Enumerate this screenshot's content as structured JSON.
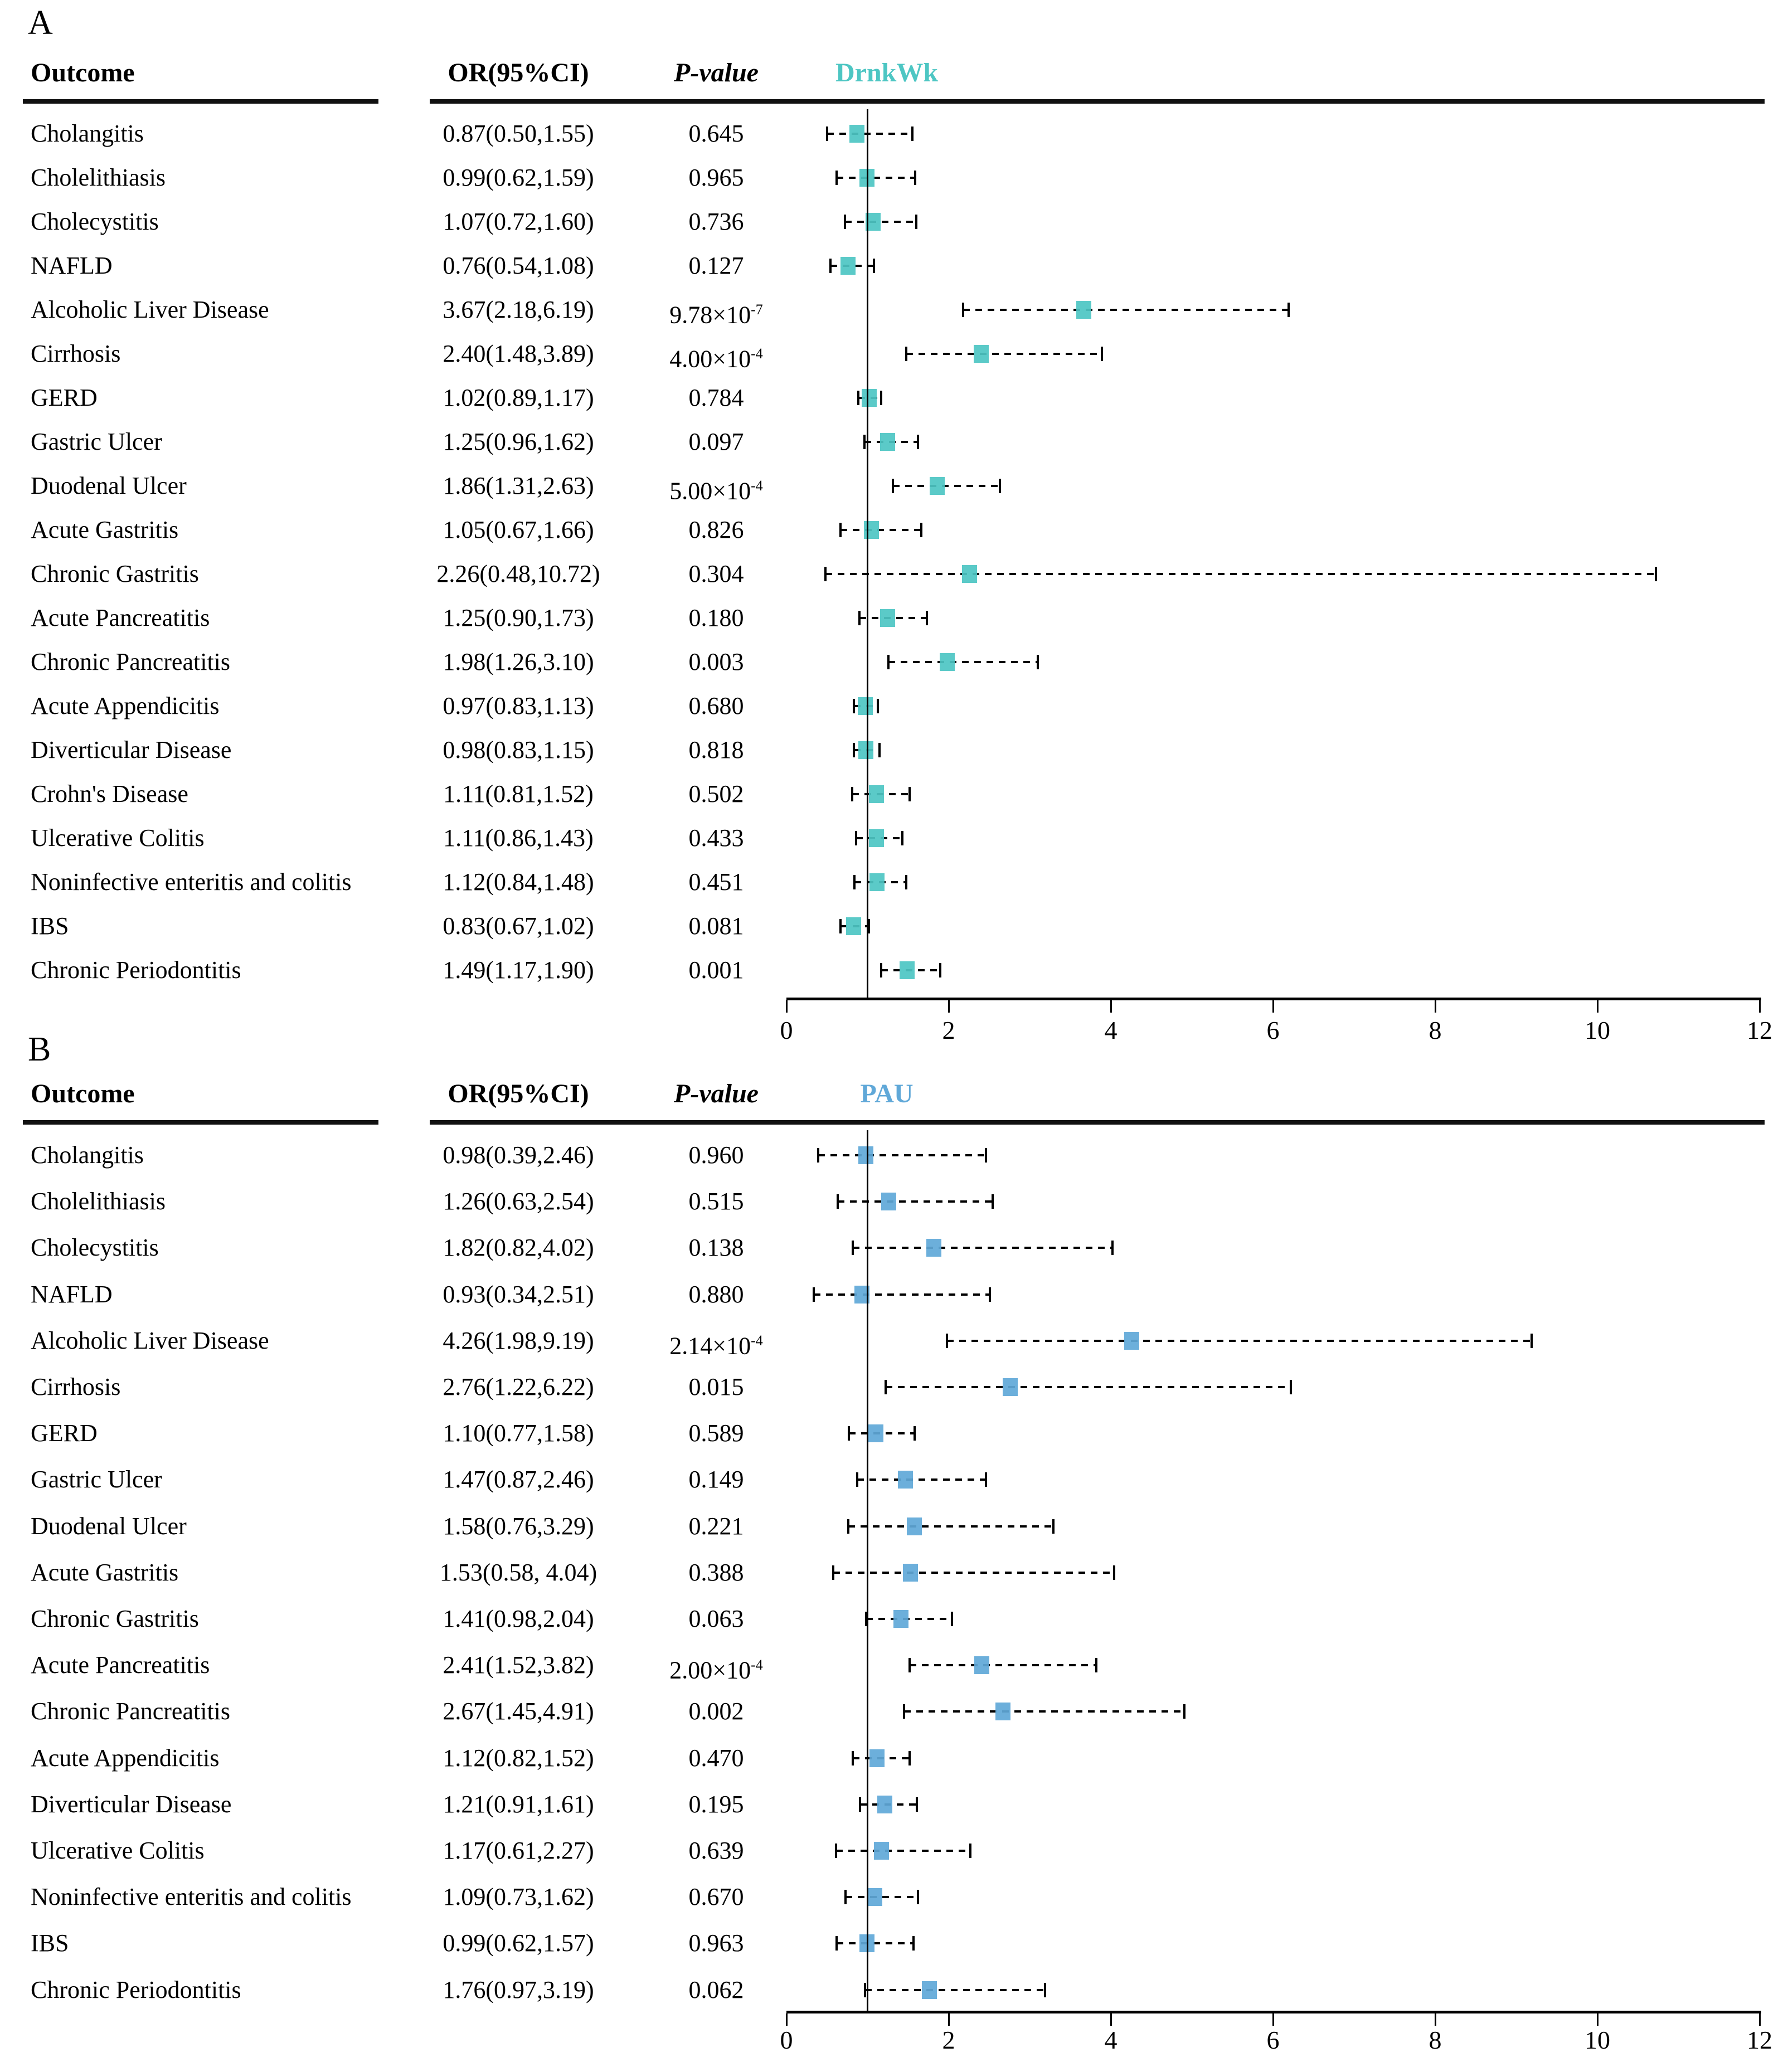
{
  "figure": {
    "columns": {
      "outcome": "Outcome",
      "or_ci": "OR(95%CI)",
      "p_value": "P-value"
    },
    "axis_ticks": [
      0,
      2,
      4,
      6,
      8,
      10,
      12
    ]
  },
  "panels": [
    {
      "panel_label": "A",
      "exposure": "DrnkWk",
      "accent_color": "#4dc6c3"
    },
    {
      "panel_label": "B",
      "exposure": "PAU",
      "accent_color": "#60a8d8"
    }
  ],
  "chart_data": [
    {
      "type": "scatter",
      "subtype": "forest-plot",
      "panel": "A",
      "title": "DrnkWk",
      "xlabel": "",
      "xlim": [
        0,
        12
      ],
      "x_ticks": [
        0,
        2,
        4,
        6,
        8,
        10,
        12
      ],
      "reference_line_x": 1,
      "marker_color": "#4dc6c3",
      "legend_position": "none",
      "grid": false,
      "columns": [
        "Outcome",
        "OR(95%CI)",
        "P-value"
      ],
      "rows": [
        {
          "outcome": "Cholangitis",
          "or": 0.87,
          "lo": 0.5,
          "hi": 1.55,
          "or_ci": "0.87(0.50,1.55)",
          "p": "0.645"
        },
        {
          "outcome": "Cholelithiasis",
          "or": 0.99,
          "lo": 0.62,
          "hi": 1.59,
          "or_ci": "0.99(0.62,1.59)",
          "p": "0.965"
        },
        {
          "outcome": "Cholecystitis",
          "or": 1.07,
          "lo": 0.72,
          "hi": 1.6,
          "or_ci": "1.07(0.72,1.60)",
          "p": "0.736"
        },
        {
          "outcome": "NAFLD",
          "or": 0.76,
          "lo": 0.54,
          "hi": 1.08,
          "or_ci": "0.76(0.54,1.08)",
          "p": "0.127"
        },
        {
          "outcome": "Alcoholic Liver Disease",
          "or": 3.67,
          "lo": 2.18,
          "hi": 6.19,
          "or_ci": "3.67(2.18,6.19)",
          "p": "9.78×10^-7"
        },
        {
          "outcome": "Cirrhosis",
          "or": 2.4,
          "lo": 1.48,
          "hi": 3.89,
          "or_ci": "2.40(1.48,3.89)",
          "p": "4.00×10^-4"
        },
        {
          "outcome": "GERD",
          "or": 1.02,
          "lo": 0.89,
          "hi": 1.17,
          "or_ci": "1.02(0.89,1.17)",
          "p": "0.784"
        },
        {
          "outcome": "Gastric Ulcer",
          "or": 1.25,
          "lo": 0.96,
          "hi": 1.62,
          "or_ci": "1.25(0.96,1.62)",
          "p": "0.097"
        },
        {
          "outcome": "Duodenal Ulcer",
          "or": 1.86,
          "lo": 1.31,
          "hi": 2.63,
          "or_ci": "1.86(1.31,2.63)",
          "p": "5.00×10^-4"
        },
        {
          "outcome": "Acute Gastritis",
          "or": 1.05,
          "lo": 0.67,
          "hi": 1.66,
          "or_ci": "1.05(0.67,1.66)",
          "p": "0.826"
        },
        {
          "outcome": "Chronic Gastritis",
          "or": 2.26,
          "lo": 0.48,
          "hi": 10.72,
          "or_ci": "2.26(0.48,10.72)",
          "p": "0.304"
        },
        {
          "outcome": "Acute Pancreatitis",
          "or": 1.25,
          "lo": 0.9,
          "hi": 1.73,
          "or_ci": "1.25(0.90,1.73)",
          "p": "0.180"
        },
        {
          "outcome": "Chronic Pancreatitis",
          "or": 1.98,
          "lo": 1.26,
          "hi": 3.1,
          "or_ci": "1.98(1.26,3.10)",
          "p": "0.003"
        },
        {
          "outcome": "Acute Appendicitis",
          "or": 0.97,
          "lo": 0.83,
          "hi": 1.13,
          "or_ci": "0.97(0.83,1.13)",
          "p": "0.680"
        },
        {
          "outcome": "Diverticular Disease",
          "or": 0.98,
          "lo": 0.83,
          "hi": 1.15,
          "or_ci": "0.98(0.83,1.15)",
          "p": "0.818"
        },
        {
          "outcome": "Crohn's Disease",
          "or": 1.11,
          "lo": 0.81,
          "hi": 1.52,
          "or_ci": "1.11(0.81,1.52)",
          "p": "0.502"
        },
        {
          "outcome": "Ulcerative Colitis",
          "or": 1.11,
          "lo": 0.86,
          "hi": 1.43,
          "or_ci": "1.11(0.86,1.43)",
          "p": "0.433"
        },
        {
          "outcome": "Noninfective enteritis and colitis",
          "or": 1.12,
          "lo": 0.84,
          "hi": 1.48,
          "or_ci": "1.12(0.84,1.48)",
          "p": "0.451"
        },
        {
          "outcome": "IBS",
          "or": 0.83,
          "lo": 0.67,
          "hi": 1.02,
          "or_ci": "0.83(0.67,1.02)",
          "p": "0.081"
        },
        {
          "outcome": "Chronic Periodontitis",
          "or": 1.49,
          "lo": 1.17,
          "hi": 1.9,
          "or_ci": "1.49(1.17,1.90)",
          "p": "0.001"
        }
      ]
    },
    {
      "type": "scatter",
      "subtype": "forest-plot",
      "panel": "B",
      "title": "PAU",
      "xlabel": "",
      "xlim": [
        0,
        12
      ],
      "x_ticks": [
        0,
        2,
        4,
        6,
        8,
        10,
        12
      ],
      "reference_line_x": 1,
      "marker_color": "#60a8d8",
      "legend_position": "none",
      "grid": false,
      "columns": [
        "Outcome",
        "OR(95%CI)",
        "P-value"
      ],
      "rows": [
        {
          "outcome": "Cholangitis",
          "or": 0.98,
          "lo": 0.39,
          "hi": 2.46,
          "or_ci": "0.98(0.39,2.46)",
          "p": "0.960"
        },
        {
          "outcome": "Cholelithiasis",
          "or": 1.26,
          "lo": 0.63,
          "hi": 2.54,
          "or_ci": "1.26(0.63,2.54)",
          "p": "0.515"
        },
        {
          "outcome": "Cholecystitis",
          "or": 1.82,
          "lo": 0.82,
          "hi": 4.02,
          "or_ci": "1.82(0.82,4.02)",
          "p": "0.138"
        },
        {
          "outcome": "NAFLD",
          "or": 0.93,
          "lo": 0.34,
          "hi": 2.51,
          "or_ci": "0.93(0.34,2.51)",
          "p": "0.880"
        },
        {
          "outcome": "Alcoholic Liver Disease",
          "or": 4.26,
          "lo": 1.98,
          "hi": 9.19,
          "or_ci": "4.26(1.98,9.19)",
          "p": "2.14×10^-4"
        },
        {
          "outcome": "Cirrhosis",
          "or": 2.76,
          "lo": 1.22,
          "hi": 6.22,
          "or_ci": "2.76(1.22,6.22)",
          "p": "0.015"
        },
        {
          "outcome": "GERD",
          "or": 1.1,
          "lo": 0.77,
          "hi": 1.58,
          "or_ci": "1.10(0.77,1.58)",
          "p": "0.589"
        },
        {
          "outcome": "Gastric Ulcer",
          "or": 1.47,
          "lo": 0.87,
          "hi": 2.46,
          "or_ci": "1.47(0.87,2.46)",
          "p": "0.149"
        },
        {
          "outcome": "Duodenal Ulcer",
          "or": 1.58,
          "lo": 0.76,
          "hi": 3.29,
          "or_ci": "1.58(0.76,3.29)",
          "p": "0.221"
        },
        {
          "outcome": "Acute Gastritis",
          "or": 1.53,
          "lo": 0.58,
          "hi": 4.04,
          "or_ci": "1.53(0.58, 4.04)",
          "p": "0.388"
        },
        {
          "outcome": "Chronic Gastritis",
          "or": 1.41,
          "lo": 0.98,
          "hi": 2.04,
          "or_ci": "1.41(0.98,2.04)",
          "p": "0.063"
        },
        {
          "outcome": "Acute Pancreatitis",
          "or": 2.41,
          "lo": 1.52,
          "hi": 3.82,
          "or_ci": "2.41(1.52,3.82)",
          "p": "2.00×10^-4"
        },
        {
          "outcome": "Chronic Pancreatitis",
          "or": 2.67,
          "lo": 1.45,
          "hi": 4.91,
          "or_ci": "2.67(1.45,4.91)",
          "p": "0.002"
        },
        {
          "outcome": "Acute Appendicitis",
          "or": 1.12,
          "lo": 0.82,
          "hi": 1.52,
          "or_ci": "1.12(0.82,1.52)",
          "p": "0.470"
        },
        {
          "outcome": "Diverticular Disease",
          "or": 1.21,
          "lo": 0.91,
          "hi": 1.61,
          "or_ci": "1.21(0.91,1.61)",
          "p": "0.195"
        },
        {
          "outcome": "Ulcerative Colitis",
          "or": 1.17,
          "lo": 0.61,
          "hi": 2.27,
          "or_ci": "1.17(0.61,2.27)",
          "p": "0.639"
        },
        {
          "outcome": "Noninfective enteritis and colitis",
          "or": 1.09,
          "lo": 0.73,
          "hi": 1.62,
          "or_ci": "1.09(0.73,1.62)",
          "p": "0.670"
        },
        {
          "outcome": "IBS",
          "or": 0.99,
          "lo": 0.62,
          "hi": 1.57,
          "or_ci": "0.99(0.62,1.57)",
          "p": "0.963"
        },
        {
          "outcome": "Chronic Periodontitis",
          "or": 1.76,
          "lo": 0.97,
          "hi": 3.19,
          "or_ci": "1.76(0.97,3.19)",
          "p": "0.062"
        }
      ]
    }
  ]
}
